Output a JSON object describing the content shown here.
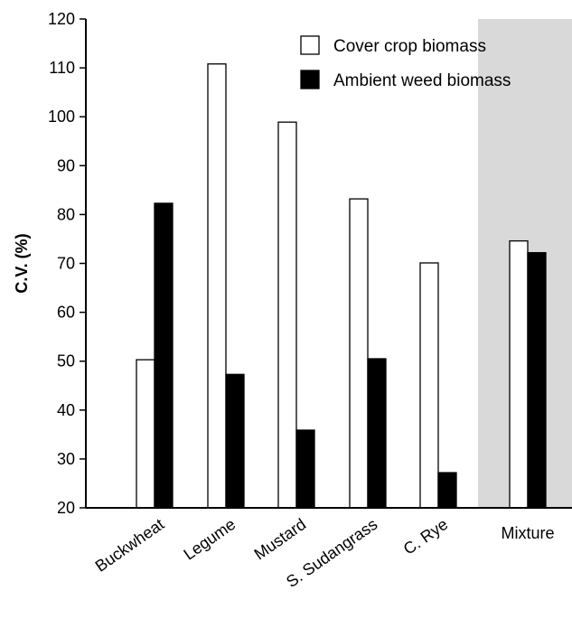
{
  "chart_data": {
    "type": "bar",
    "title": "",
    "xlabel": "",
    "ylabel": "C.V. (%)",
    "ylim": [
      20,
      120
    ],
    "yticks": [
      20,
      30,
      40,
      50,
      60,
      70,
      80,
      90,
      100,
      110,
      120
    ],
    "categories": [
      "Buckwheat",
      "Legume",
      "Mustard",
      "S. Sudangrass",
      "C. Rye",
      "Mixture"
    ],
    "series": [
      {
        "name": "Cover crop biomass",
        "color": "#ffffff",
        "values": [
          50.3,
          110.8,
          98.9,
          83.2,
          70.1,
          74.6
        ]
      },
      {
        "name": "Ambient weed biomass",
        "color": "#000000",
        "values": [
          82.3,
          47.3,
          35.9,
          50.5,
          27.2,
          72.2
        ]
      }
    ],
    "highlight_category": "Mixture",
    "highlight_color": "#d9d9d9",
    "grid": false,
    "legend_position": "top-right"
  }
}
